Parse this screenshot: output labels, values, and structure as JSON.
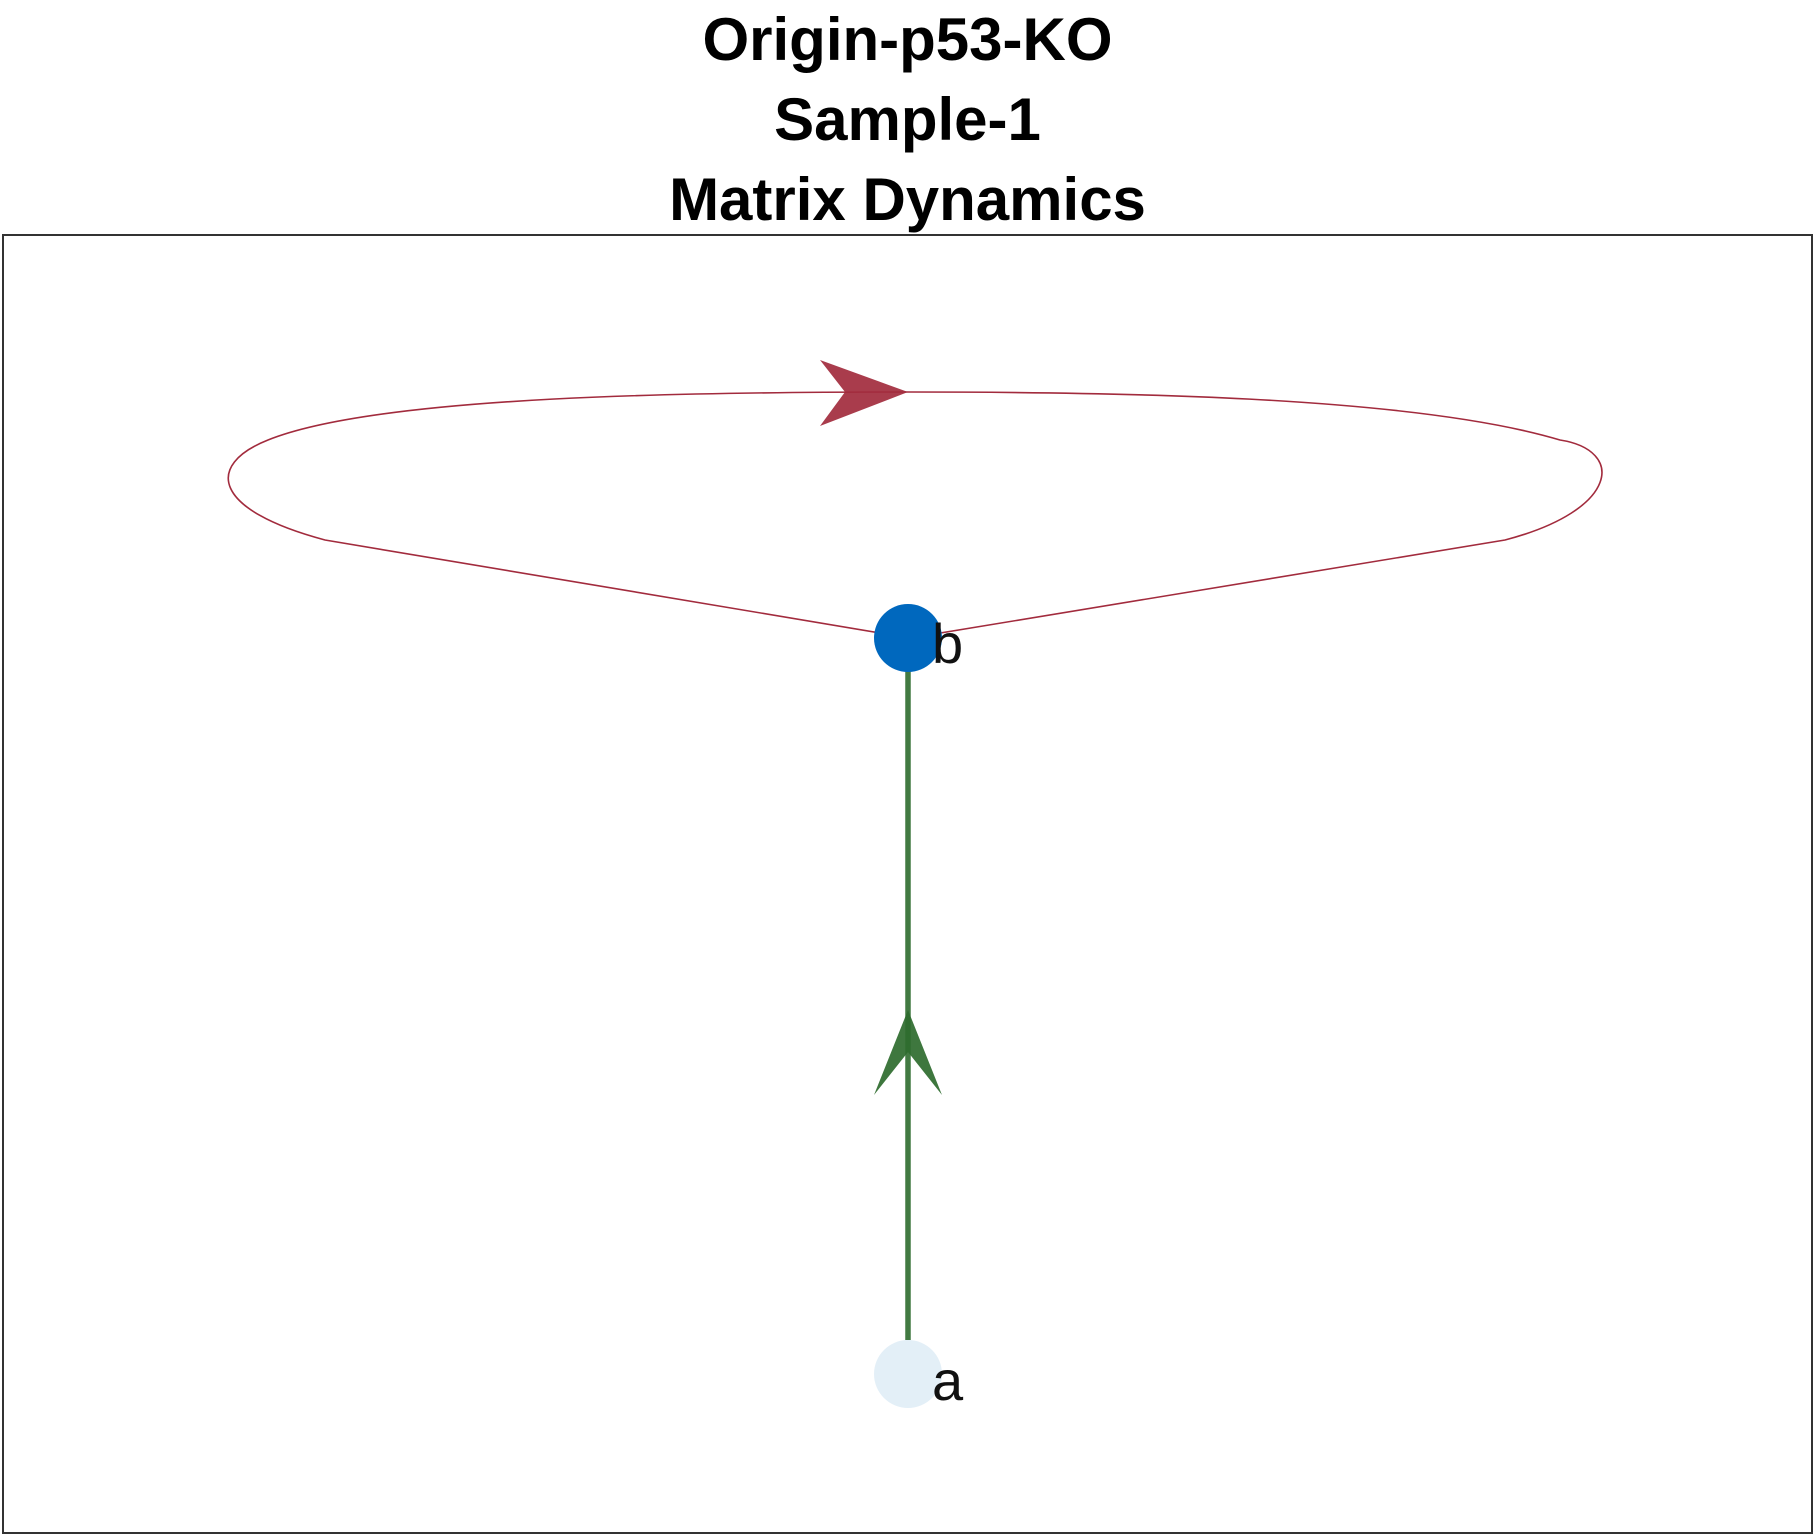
{
  "title": {
    "line1": "Origin-p53-KO",
    "line2": "Sample-1",
    "line3": "Matrix Dynamics"
  },
  "graph": {
    "nodes": [
      {
        "id": "a",
        "label": "a",
        "color": "#e3eff7"
      },
      {
        "id": "b",
        "label": "b",
        "color": "#0068be"
      }
    ],
    "edges": [
      {
        "from": "a",
        "to": "b",
        "color": "#2e6b2e",
        "type": "straight"
      },
      {
        "from": "b",
        "to": "b",
        "color": "#a22b3d",
        "type": "self-loop"
      }
    ]
  },
  "colors": {
    "frame": "#333333",
    "edge_a_b": "#2e6b2e",
    "self_loop_b": "#a22b3d",
    "node_a": "#e3eff7",
    "node_b": "#0068be"
  }
}
